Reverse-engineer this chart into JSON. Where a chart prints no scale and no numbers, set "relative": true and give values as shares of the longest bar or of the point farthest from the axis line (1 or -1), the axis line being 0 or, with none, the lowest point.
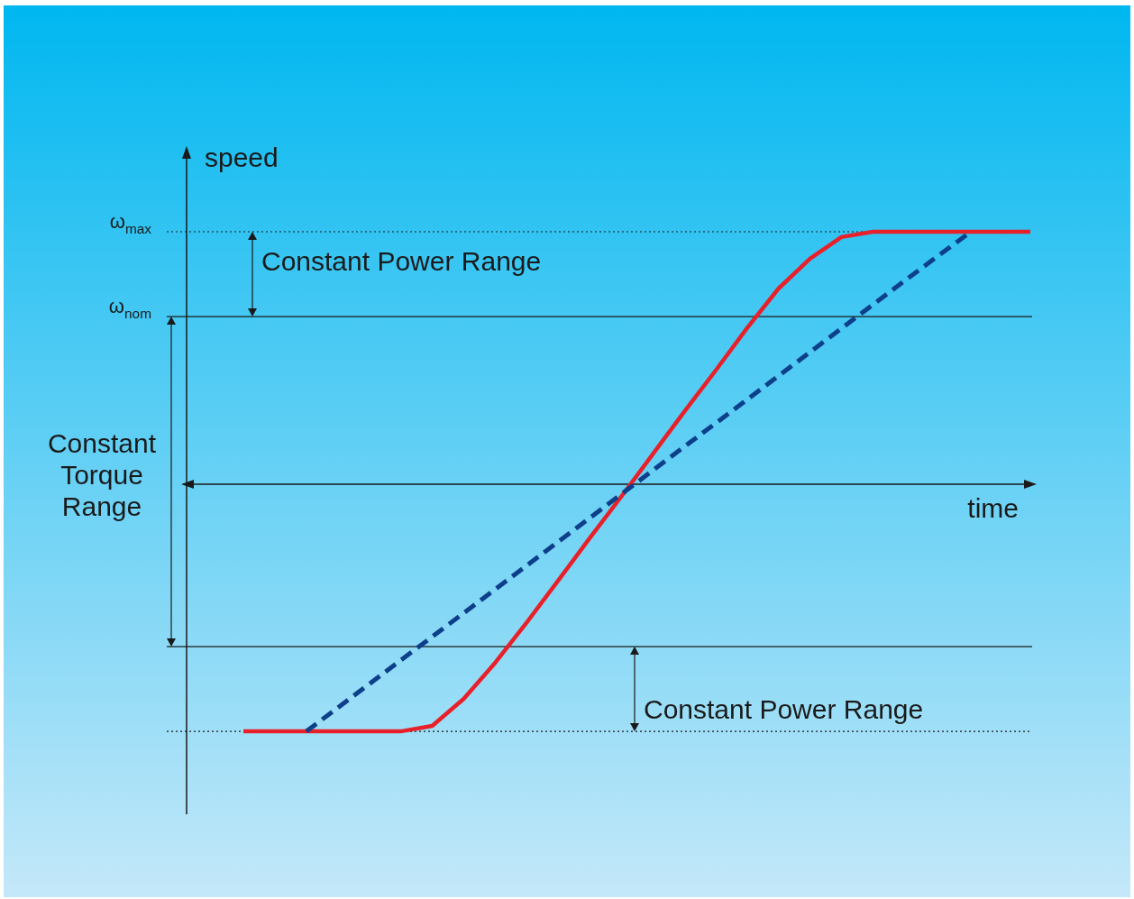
{
  "chart_data": {
    "type": "line",
    "relative": true,
    "xlabel": "time",
    "ylabel": "speed",
    "categories": [
      null,
      null,
      null,
      null,
      null,
      null,
      null,
      null,
      null,
      null,
      null,
      null,
      null,
      null,
      null,
      null,
      null,
      null,
      null,
      null,
      null,
      null,
      null,
      null,
      null,
      null
    ],
    "series": [
      {
        "color": "#e8202a",
        "line_style": "solid",
        "values": [
          -0.979,
          -0.979,
          -0.979,
          -0.979,
          -0.979,
          -0.979,
          -0.957,
          -0.85,
          -0.707,
          -0.548,
          -0.382,
          -0.214,
          -0.05,
          0.118,
          0.286,
          0.45,
          0.618,
          0.775,
          0.893,
          0.979,
          1,
          1,
          1,
          1,
          1,
          1
        ]
      },
      {
        "color": "#0d3f8a",
        "line_style": "dashed",
        "values": [
          null,
          null,
          -0.979,
          -0.885,
          -0.791,
          -0.697,
          -0.604,
          -0.51,
          -0.416,
          -0.322,
          -0.228,
          -0.134,
          -0.04,
          0.054,
          0.148,
          0.241,
          0.335,
          0.429,
          0.523,
          0.617,
          0.711,
          0.805,
          0.898,
          0.99,
          null,
          null
        ]
      }
    ],
    "ref_lines": [
      {
        "axis": "y",
        "value": 1,
        "label": "ω$_{max}$",
        "line_style": "dotted",
        "color": "#1a1a1a"
      },
      {
        "axis": "y",
        "value": 0.664,
        "label": "ω$_{nom}$",
        "line_style": "solid",
        "color": "#1a1a1a"
      },
      {
        "axis": "y",
        "value": -0.643,
        "label": null,
        "line_style": "solid",
        "color": "#1a1a1a"
      },
      {
        "axis": "y",
        "value": -0.979,
        "label": null,
        "line_style": "dotted",
        "color": "#1a1a1a"
      }
    ],
    "annotations": [
      "Constant Power Range",
      "Constant Torque Range",
      "Constant Power Range"
    ]
  }
}
